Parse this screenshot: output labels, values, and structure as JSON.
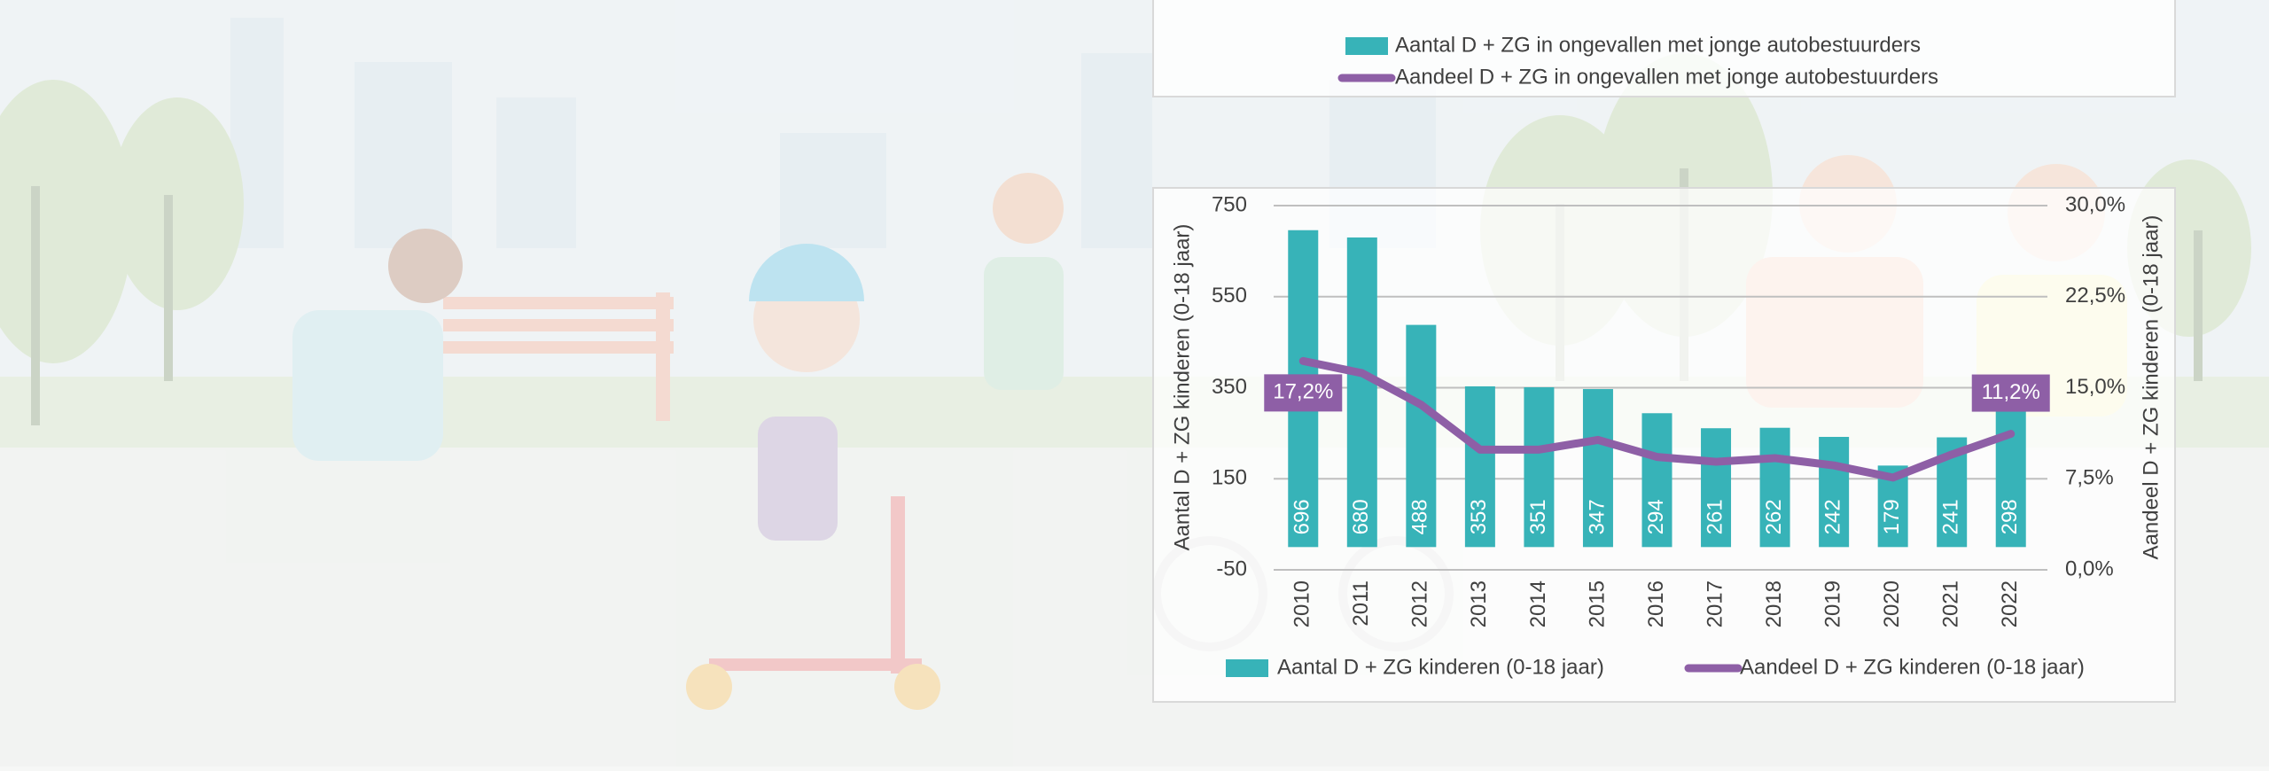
{
  "legend_panel": {
    "items": [
      {
        "name": "Aantal D + ZG in ongevallen met jonge autobestuurders",
        "color": "#37b3b8"
      },
      {
        "name": "Aandeel D + ZG in ongevallen met jonge autobestuurders",
        "color": "#8e5fa6"
      }
    ]
  },
  "chart_data": {
    "type": "bar-line",
    "y_label": "Aantal D + ZG kinderen (0-18 jaar)",
    "y2_label": "Aandeel D + ZG kinderen (0-18 jaar)",
    "categories": [
      "2010",
      "2011",
      "2012",
      "2013",
      "2014",
      "2015",
      "2016",
      "2017",
      "2018",
      "2019",
      "2020",
      "2021",
      "2022"
    ],
    "series": [
      {
        "name": "Aantal D + ZG kinderen (0-18 jaar)",
        "color": "#37b3b8",
        "type": "bar",
        "values": [
          696,
          680,
          488,
          353,
          351,
          347,
          294,
          261,
          262,
          242,
          179,
          241,
          298
        ]
      },
      {
        "name": "Aandeel D + ZG kinderen (0-18 jaar)",
        "color": "#8e5fa6",
        "type": "line",
        "axis": "y2",
        "values": [
          17.2,
          16.2,
          13.6,
          9.9,
          9.9,
          10.7,
          9.3,
          8.9,
          9.2,
          8.6,
          7.6,
          9.5,
          11.2
        ],
        "value_labels": [
          "17,2%",
          null,
          null,
          null,
          null,
          null,
          null,
          null,
          null,
          null,
          null,
          null,
          "11,2%"
        ]
      }
    ],
    "ylim": [
      -50,
      750
    ],
    "yticks": [
      -50,
      150,
      350,
      550,
      750
    ],
    "y2lim": [
      0,
      30
    ],
    "y2ticks": [
      {
        "value": 0,
        "label": "0,0%"
      },
      {
        "value": 7.5,
        "label": "7,5%"
      },
      {
        "value": 15,
        "label": "15,0%"
      },
      {
        "value": 22.5,
        "label": "22,5%"
      },
      {
        "value": 30,
        "label": "30,0%"
      }
    ],
    "grid": true,
    "legend": "bottom"
  }
}
